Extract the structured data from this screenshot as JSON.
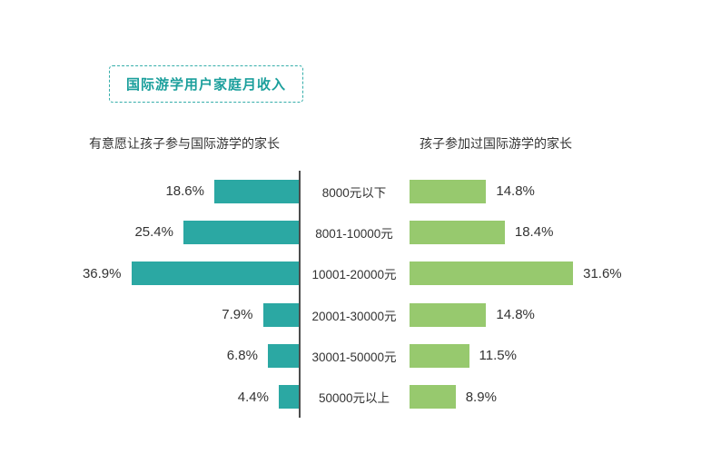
{
  "title": "国际游学用户家庭月收入",
  "headers": {
    "left": "有意愿让孩子参与国际游学的家长",
    "right": "孩子参加过国际游学的家长"
  },
  "colors": {
    "accent_teal": "#1b9f9c",
    "bar_left": "#2BA8A3",
    "bar_right": "#97C96E",
    "divider": "#4d4d4d",
    "text": "#333333"
  },
  "chart_data": {
    "type": "bar",
    "subtype": "bidirectional-tornado",
    "title": "国际游学用户家庭月收入",
    "unit": "%",
    "value_labels": true,
    "grid": false,
    "categories": [
      "8000元以下",
      "8001-10000元",
      "10001-20000元",
      "20001-30000元",
      "30001-50000元",
      "50000元以上"
    ],
    "series": [
      {
        "name": "有意愿让孩子参与国际游学的家长",
        "side": "left",
        "color": "#2BA8A3",
        "values": [
          18.6,
          25.4,
          36.9,
          7.9,
          6.8,
          4.4
        ]
      },
      {
        "name": "孩子参加过国际游学的家长",
        "side": "right",
        "color": "#97C96E",
        "values": [
          14.8,
          18.4,
          31.6,
          14.8,
          11.5,
          8.9
        ]
      }
    ]
  }
}
